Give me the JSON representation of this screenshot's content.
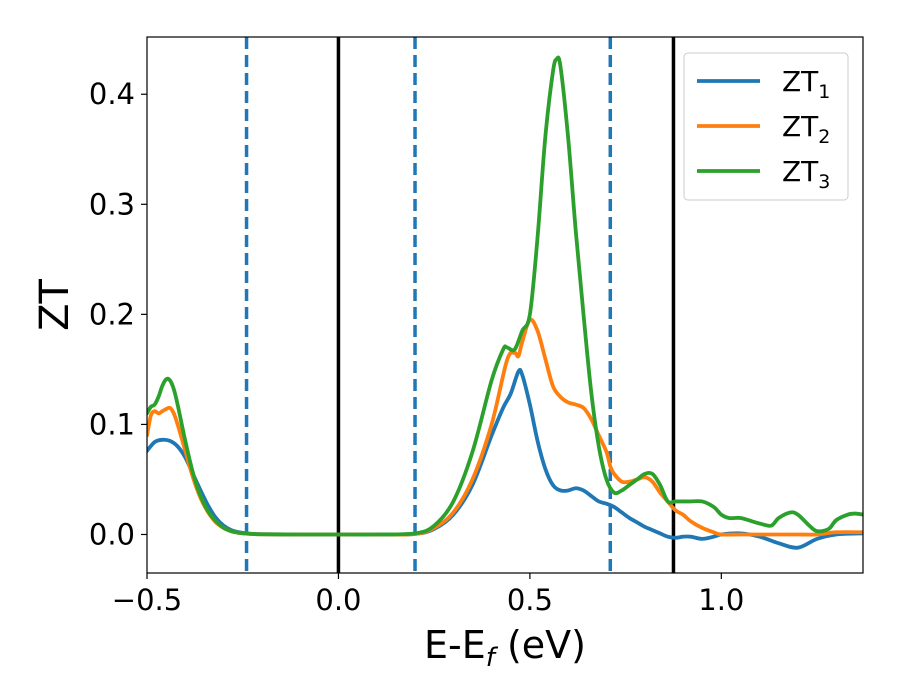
{
  "chart_data": {
    "type": "line",
    "xlabel": {
      "main": "E-E",
      "sub": "f",
      "tail": " (eV)"
    },
    "ylabel": "ZT",
    "xlim": [
      -0.5,
      1.37
    ],
    "ylim": [
      -0.035,
      0.452
    ],
    "xticks": [
      {
        "value": -0.5,
        "label": "−0.5"
      },
      {
        "value": 0.0,
        "label": "0.0"
      },
      {
        "value": 0.5,
        "label": "0.5"
      },
      {
        "value": 1.0,
        "label": "1.0"
      }
    ],
    "yticks": [
      {
        "value": 0.0,
        "label": "0.0"
      },
      {
        "value": 0.1,
        "label": "0.1"
      },
      {
        "value": 0.2,
        "label": "0.2"
      },
      {
        "value": 0.3,
        "label": "0.3"
      },
      {
        "value": 0.4,
        "label": "0.4"
      }
    ],
    "grid": false,
    "legend_position": "top-right",
    "vlines": [
      {
        "x": -0.24,
        "style": "dashed",
        "color": "#1f77b4"
      },
      {
        "x": 0.0,
        "style": "solid",
        "color": "#000000"
      },
      {
        "x": 0.2,
        "style": "dashed",
        "color": "#1f77b4"
      },
      {
        "x": 0.71,
        "style": "dashed",
        "color": "#1f77b4"
      },
      {
        "x": 0.875,
        "style": "solid",
        "color": "#000000"
      }
    ],
    "series": [
      {
        "name": "ZT",
        "sub": "1",
        "color": "#1f77b4",
        "x": [
          -0.5,
          -0.48,
          -0.46,
          -0.44,
          -0.42,
          -0.4,
          -0.38,
          -0.36,
          -0.34,
          -0.32,
          -0.3,
          -0.28,
          -0.26,
          -0.24,
          -0.22,
          -0.2,
          -0.1,
          0.0,
          0.1,
          0.2,
          0.25,
          0.3,
          0.35,
          0.4,
          0.43,
          0.45,
          0.47,
          0.48,
          0.5,
          0.52,
          0.54,
          0.56,
          0.58,
          0.6,
          0.62,
          0.64,
          0.66,
          0.68,
          0.7,
          0.72,
          0.74,
          0.76,
          0.78,
          0.8,
          0.82,
          0.84,
          0.86,
          0.88,
          0.9,
          0.92,
          0.95,
          0.98,
          1.0,
          1.05,
          1.1,
          1.15,
          1.2,
          1.25,
          1.3,
          1.37
        ],
        "y": [
          0.076,
          0.084,
          0.086,
          0.085,
          0.08,
          0.07,
          0.055,
          0.04,
          0.026,
          0.015,
          0.008,
          0.004,
          0.002,
          0.001,
          0.0005,
          0.0002,
          0.0,
          0.0,
          0.0,
          0.0005,
          0.005,
          0.018,
          0.045,
          0.09,
          0.115,
          0.128,
          0.148,
          0.145,
          0.118,
          0.085,
          0.06,
          0.045,
          0.04,
          0.04,
          0.042,
          0.04,
          0.035,
          0.03,
          0.028,
          0.025,
          0.02,
          0.015,
          0.011,
          0.007,
          0.004,
          0.001,
          -0.002,
          -0.003,
          -0.002,
          -0.002,
          -0.004,
          -0.002,
          0.0,
          0.001,
          -0.002,
          -0.008,
          -0.012,
          -0.004,
          0.0,
          0.001
        ]
      },
      {
        "name": "ZT",
        "sub": "2",
        "color": "#ff7f0e",
        "x": [
          -0.5,
          -0.49,
          -0.48,
          -0.47,
          -0.46,
          -0.45,
          -0.44,
          -0.43,
          -0.42,
          -0.4,
          -0.38,
          -0.36,
          -0.34,
          -0.32,
          -0.3,
          -0.28,
          -0.26,
          -0.24,
          -0.22,
          -0.2,
          -0.1,
          0.0,
          0.1,
          0.2,
          0.25,
          0.3,
          0.35,
          0.4,
          0.44,
          0.46,
          0.47,
          0.48,
          0.5,
          0.52,
          0.54,
          0.56,
          0.58,
          0.6,
          0.62,
          0.64,
          0.66,
          0.68,
          0.7,
          0.71,
          0.72,
          0.74,
          0.76,
          0.78,
          0.8,
          0.82,
          0.84,
          0.86,
          0.88,
          0.9,
          0.92,
          0.95,
          0.98,
          1.0,
          1.05,
          1.1,
          1.15,
          1.2,
          1.25,
          1.3,
          1.37
        ],
        "y": [
          0.09,
          0.108,
          0.112,
          0.11,
          0.112,
          0.114,
          0.115,
          0.11,
          0.1,
          0.076,
          0.052,
          0.033,
          0.02,
          0.011,
          0.006,
          0.003,
          0.0015,
          0.0008,
          0.0004,
          0.0002,
          0.0,
          0.0,
          0.0,
          0.0005,
          0.006,
          0.02,
          0.05,
          0.1,
          0.158,
          0.165,
          0.162,
          0.175,
          0.195,
          0.185,
          0.16,
          0.135,
          0.125,
          0.12,
          0.118,
          0.115,
          0.105,
          0.09,
          0.075,
          0.062,
          0.055,
          0.048,
          0.048,
          0.05,
          0.052,
          0.048,
          0.038,
          0.03,
          0.022,
          0.018,
          0.012,
          0.006,
          0.002,
          0.0,
          0.0,
          0.0,
          0.0,
          0.0,
          0.0,
          0.002,
          0.002
        ]
      },
      {
        "name": "ZT",
        "sub": "3",
        "color": "#2ca02c",
        "x": [
          -0.5,
          -0.49,
          -0.48,
          -0.47,
          -0.46,
          -0.45,
          -0.44,
          -0.43,
          -0.42,
          -0.4,
          -0.38,
          -0.36,
          -0.34,
          -0.32,
          -0.3,
          -0.28,
          -0.26,
          -0.24,
          -0.22,
          -0.2,
          -0.1,
          0.0,
          0.1,
          0.2,
          0.25,
          0.3,
          0.35,
          0.4,
          0.43,
          0.44,
          0.46,
          0.48,
          0.5,
          0.52,
          0.54,
          0.56,
          0.57,
          0.58,
          0.6,
          0.62,
          0.64,
          0.66,
          0.68,
          0.7,
          0.72,
          0.74,
          0.76,
          0.78,
          0.8,
          0.82,
          0.84,
          0.86,
          0.88,
          0.9,
          0.92,
          0.95,
          0.98,
          1.0,
          1.02,
          1.05,
          1.08,
          1.1,
          1.13,
          1.15,
          1.18,
          1.2,
          1.23,
          1.25,
          1.28,
          1.3,
          1.33,
          1.35,
          1.37
        ],
        "y": [
          0.11,
          0.116,
          0.118,
          0.125,
          0.135,
          0.141,
          0.14,
          0.132,
          0.118,
          0.085,
          0.056,
          0.035,
          0.021,
          0.012,
          0.006,
          0.003,
          0.0015,
          0.0008,
          0.0004,
          0.0002,
          0.0,
          0.0,
          0.0,
          0.001,
          0.008,
          0.03,
          0.075,
          0.14,
          0.168,
          0.17,
          0.168,
          0.185,
          0.2,
          0.27,
          0.36,
          0.42,
          0.432,
          0.425,
          0.36,
          0.275,
          0.2,
          0.13,
          0.08,
          0.05,
          0.038,
          0.04,
          0.045,
          0.05,
          0.055,
          0.055,
          0.045,
          0.03,
          0.03,
          0.03,
          0.03,
          0.03,
          0.025,
          0.018,
          0.015,
          0.015,
          0.012,
          0.01,
          0.008,
          0.015,
          0.02,
          0.018,
          0.008,
          0.003,
          0.005,
          0.013,
          0.018,
          0.019,
          0.018
        ]
      }
    ]
  }
}
